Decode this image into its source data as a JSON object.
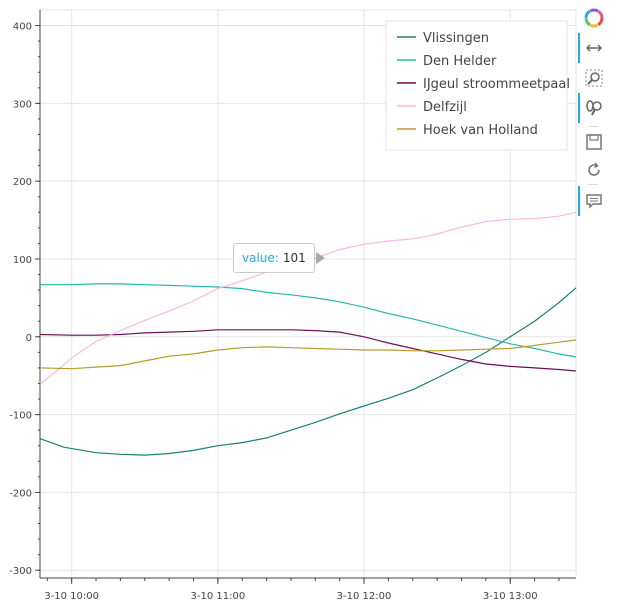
{
  "chart_data": {
    "type": "line",
    "x_tick_labels": [
      "3-10 10:00",
      "3-10 11:00",
      "3-10 12:00",
      "3-10 13:00"
    ],
    "x_ticks_min": [
      0,
      60,
      120,
      180
    ],
    "xlim_min": [
      -13,
      207
    ],
    "ylim": [
      -310,
      420
    ],
    "y_ticks": [
      -300,
      -200,
      -100,
      0,
      100,
      200,
      300,
      400
    ],
    "grid": true,
    "legend_position": "top-right",
    "series": [
      {
        "name": "Vlissingen",
        "color": "#1b7f79",
        "x": [
          -13,
          -3,
          10,
          20,
          30,
          40,
          50,
          60,
          70,
          80,
          90,
          100,
          110,
          120,
          130,
          140,
          150,
          160,
          170,
          180,
          190,
          200,
          207
        ],
        "y": [
          -131,
          -142,
          -149,
          -151,
          -152,
          -150,
          -146,
          -140,
          -136,
          -130,
          -120,
          -110,
          -99,
          -89,
          -79,
          -68,
          -53,
          -37,
          -20,
          0,
          20,
          44,
          63
        ]
      },
      {
        "name": "Den Helder",
        "color": "#2bb6a8",
        "x": [
          -13,
          0,
          10,
          20,
          30,
          40,
          50,
          60,
          70,
          80,
          90,
          100,
          110,
          120,
          130,
          140,
          150,
          160,
          170,
          180,
          190,
          200,
          207
        ],
        "y": [
          67,
          67,
          68,
          68,
          67,
          66,
          65,
          64,
          62,
          57,
          54,
          50,
          45,
          38,
          30,
          23,
          15,
          7,
          -1,
          -9,
          -15,
          -22,
          -26
        ]
      },
      {
        "name": "IJgeul stroommeetpaal",
        "color": "#6a0f5c",
        "x": [
          -13,
          0,
          10,
          20,
          30,
          40,
          50,
          60,
          70,
          80,
          90,
          100,
          110,
          120,
          130,
          140,
          150,
          160,
          170,
          180,
          190,
          200,
          207
        ],
        "y": [
          3,
          2,
          2,
          3,
          5,
          6,
          7,
          9,
          9,
          9,
          9,
          8,
          6,
          0,
          -8,
          -15,
          -22,
          -29,
          -35,
          -38,
          -40,
          -42,
          -44
        ]
      },
      {
        "name": "Delfzijl",
        "color": "#f9b8e6",
        "x": [
          -13,
          -5,
          0,
          10,
          20,
          30,
          40,
          50,
          60,
          70,
          80,
          90,
          100,
          110,
          120,
          130,
          140,
          150,
          160,
          170,
          180,
          190,
          200,
          207
        ],
        "y": [
          -61,
          -41,
          -27,
          -6,
          8,
          21,
          33,
          46,
          62,
          72,
          83,
          92,
          101,
          112,
          119,
          123,
          126,
          132,
          141,
          148,
          151,
          152,
          155,
          160
        ]
      },
      {
        "name": "Hoek van Holland",
        "color": "#b79b2e",
        "x": [
          -13,
          0,
          10,
          20,
          30,
          40,
          50,
          60,
          70,
          80,
          90,
          100,
          110,
          120,
          130,
          140,
          150,
          160,
          170,
          180,
          190,
          200,
          207
        ],
        "y": [
          -40,
          -41,
          -39,
          -37,
          -31,
          -25,
          -22,
          -17,
          -14,
          -13,
          -14,
          -15,
          -16,
          -17,
          -17,
          -18,
          -18,
          -17,
          -16,
          -15,
          -11,
          -7,
          -4
        ]
      }
    ]
  },
  "tooltip": {
    "key": "value:",
    "value": "101"
  },
  "toolbar": {
    "items": [
      "bokeh-logo-icon",
      "pan-icon",
      "box-zoom-icon",
      "wheel-zoom-icon",
      "save-icon",
      "reset-icon",
      "hover-icon"
    ]
  }
}
